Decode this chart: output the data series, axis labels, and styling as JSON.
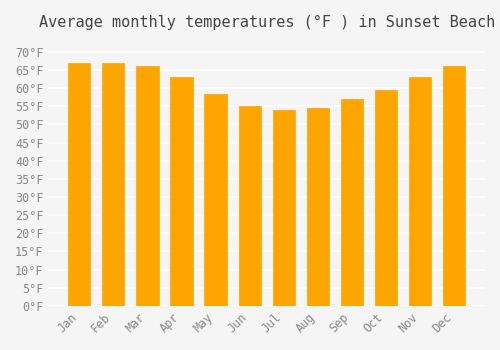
{
  "title": "Average monthly temperatures (°F ) in Sunset Beach",
  "months": [
    "Jan",
    "Feb",
    "Mar",
    "Apr",
    "May",
    "Jun",
    "Jul",
    "Aug",
    "Sep",
    "Oct",
    "Nov",
    "Dec"
  ],
  "values": [
    67.0,
    67.0,
    66.0,
    63.0,
    58.5,
    55.0,
    54.0,
    54.5,
    57.0,
    59.5,
    63.0,
    66.0
  ],
  "bar_color": "#FFA500",
  "bar_edge_color": "#E08000",
  "ylim": [
    0,
    73
  ],
  "yticks": [
    0,
    5,
    10,
    15,
    20,
    25,
    30,
    35,
    40,
    45,
    50,
    55,
    60,
    65,
    70
  ],
  "ytick_labels": [
    "0°F",
    "5°F",
    "10°F",
    "15°F",
    "20°F",
    "25°F",
    "30°F",
    "35°F",
    "40°F",
    "45°F",
    "50°F",
    "55°F",
    "60°F",
    "65°F",
    "70°F"
  ],
  "background_color": "#f5f5f5",
  "grid_color": "#ffffff",
  "title_fontsize": 11,
  "tick_fontsize": 8.5,
  "title_color": "#444444",
  "tick_color": "#888888",
  "bar_width": 0.65
}
